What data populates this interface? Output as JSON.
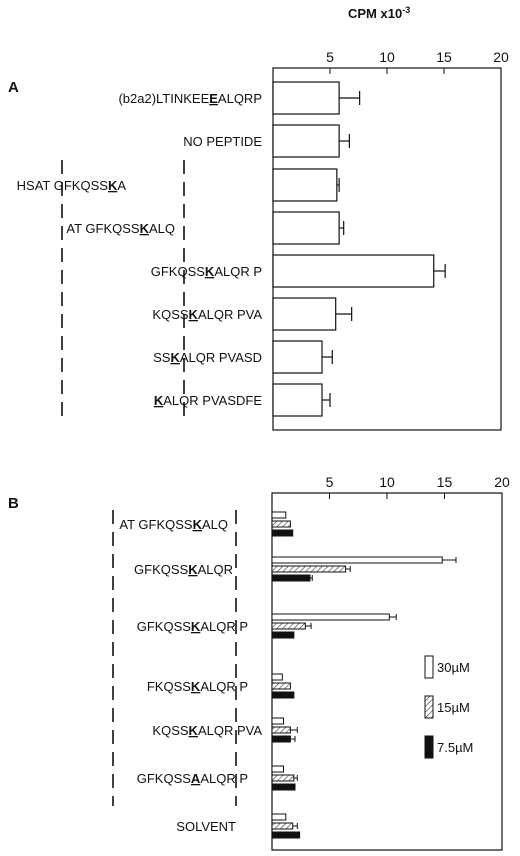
{
  "axis_title": {
    "text": "CPM x10",
    "sup": "-3"
  },
  "legend": [
    "30µM",
    "15µM",
    "7.5µM"
  ],
  "chart_data": [
    {
      "panel": "A",
      "type": "bar",
      "xlim": [
        0,
        20
      ],
      "ticks": [
        5,
        10,
        15,
        20
      ],
      "rows": [
        {
          "segs": [
            "(b2a2)LTINKEE",
            "E",
            "ALQRP"
          ],
          "value": 5.8,
          "err": 1.8
        },
        {
          "segs": [
            "NO PEPTIDE",
            "",
            ""
          ],
          "value": 5.8,
          "err": 0.9
        },
        {
          "segs": [
            "HSAT GFKQSS",
            "K",
            "A"
          ],
          "value": 5.6,
          "err": 0.2
        },
        {
          "segs": [
            "AT GFKQSS",
            "K",
            "ALQ"
          ],
          "value": 5.8,
          "err": 0.4
        },
        {
          "segs": [
            "GFKQSS",
            "K",
            "ALQR P"
          ],
          "value": 14.1,
          "err": 1.0
        },
        {
          "segs": [
            "KQSS",
            "K",
            "ALQR PVA"
          ],
          "value": 5.5,
          "err": 1.4
        },
        {
          "segs": [
            "SS",
            "K",
            "ALQR PVASD"
          ],
          "value": 4.3,
          "err": 0.9
        },
        {
          "segs": [
            "",
            "K",
            "ALQR PVASDFE"
          ],
          "value": 4.3,
          "err": 0.7
        }
      ]
    },
    {
      "panel": "B",
      "type": "bar",
      "xlim": [
        0,
        20
      ],
      "ticks": [
        5,
        10,
        15,
        20
      ],
      "series": [
        {
          "name": "30µM",
          "values": [
            1.2,
            14.8,
            10.2,
            0.9,
            1.0,
            1.0,
            1.2
          ],
          "err": [
            0,
            1.2,
            0.6,
            0,
            0,
            0,
            0
          ]
        },
        {
          "name": "15µM",
          "values": [
            1.6,
            6.4,
            2.9,
            1.6,
            1.6,
            1.9,
            1.8
          ],
          "err": [
            0,
            0.4,
            0.5,
            0,
            0.6,
            0.3,
            0.4
          ]
        },
        {
          "name": "7.5µM",
          "values": [
            1.8,
            3.3,
            1.9,
            1.9,
            1.6,
            2.0,
            2.4
          ],
          "err": [
            0,
            0.2,
            0,
            0,
            0.4,
            0,
            0
          ]
        }
      ],
      "rows": [
        {
          "segs": [
            "AT GFKQSS",
            "K",
            "ALQ"
          ]
        },
        {
          "segs": [
            "GFKQSS",
            "K",
            "ALQR"
          ]
        },
        {
          "segs": [
            "GFKQSS",
            "K",
            "ALQR P"
          ]
        },
        {
          "segs": [
            "FKQSS",
            "K",
            "ALQR P"
          ]
        },
        {
          "segs": [
            "KQSS",
            "K",
            "ALQR PVA"
          ]
        },
        {
          "segs": [
            "GFKQSS",
            "A",
            "ALQR P"
          ]
        },
        {
          "segs": [
            "SOLVENT",
            "",
            ""
          ]
        }
      ]
    }
  ]
}
